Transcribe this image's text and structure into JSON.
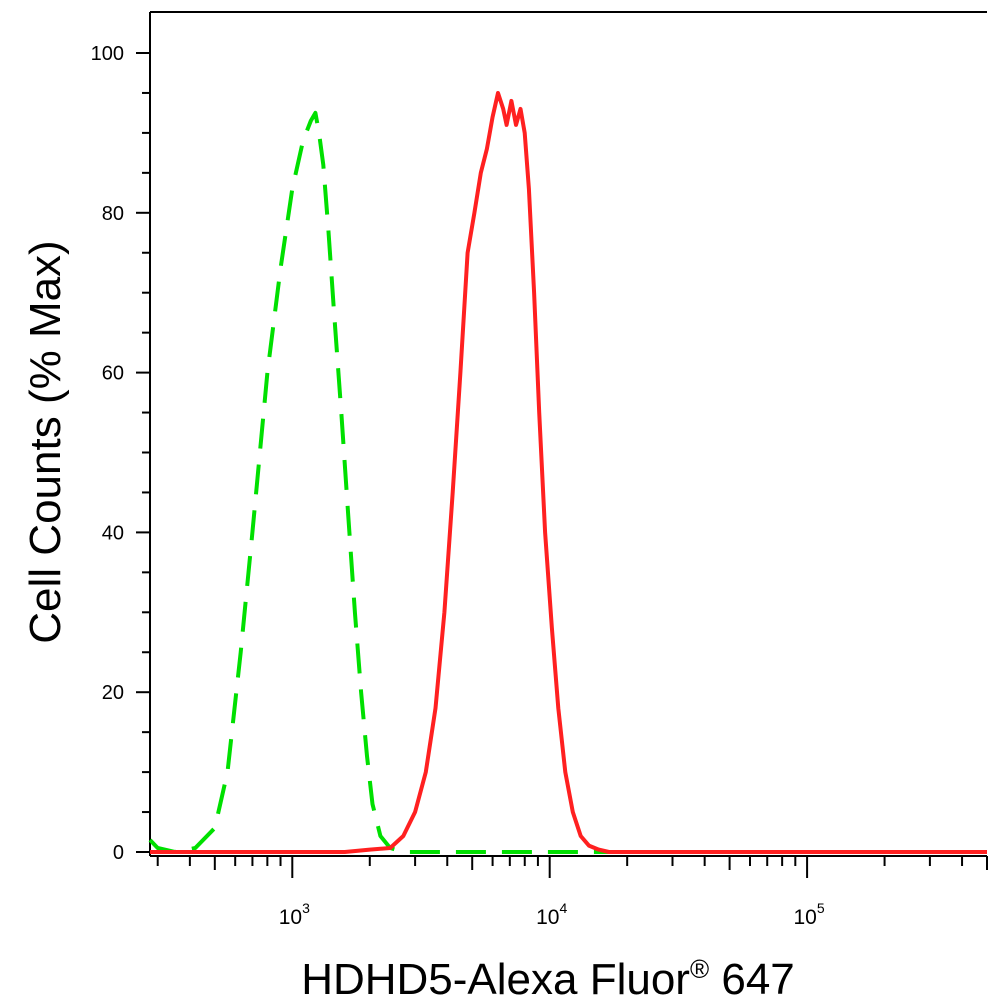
{
  "chart_data": {
    "type": "line",
    "xlabel_parts": {
      "main": "HDHD5-Alexa Fluor",
      "registered": "®",
      "suffix": " 647"
    },
    "ylabel": "Cell Counts (% Max)",
    "x_scale": "log",
    "xlim": [
      280,
      500000
    ],
    "ylim": [
      0,
      100
    ],
    "y_ticks": [
      0,
      20,
      40,
      60,
      80,
      100
    ],
    "y_tick_labels": [
      "0",
      "20",
      "40",
      "60",
      "80",
      "100"
    ],
    "x_major_ticks": [
      1000,
      10000,
      100000
    ],
    "x_tick_labels": [
      {
        "base": "10",
        "exp": "3"
      },
      {
        "base": "10",
        "exp": "4"
      },
      {
        "base": "10",
        "exp": "5"
      }
    ],
    "grid": false,
    "series": [
      {
        "color": "#00e000",
        "style": "dashed",
        "x": [
          280,
          300,
          350,
          420,
          500,
          560,
          630,
          700,
          800,
          900,
          1000,
          1100,
          1180,
          1230,
          1270,
          1320,
          1380,
          1450,
          1550,
          1650,
          1750,
          1850,
          1950,
          2050,
          2200,
          2400,
          2700,
          3000,
          4000,
          6000,
          10000,
          20000,
          50000,
          100000,
          200000,
          500000
        ],
        "y": [
          1.5,
          0.5,
          0,
          0.5,
          3,
          10,
          25,
          40,
          60,
          73,
          83,
          89,
          91.5,
          92.5,
          90,
          86,
          78,
          68,
          55,
          42,
          30,
          20,
          12,
          6,
          2,
          0.5,
          0,
          0,
          0,
          0,
          0,
          0,
          0,
          0,
          0,
          0
        ]
      },
      {
        "color": "#ff2020",
        "style": "solid",
        "x": [
          280,
          1000,
          1600,
          2000,
          2400,
          2700,
          3000,
          3300,
          3600,
          3900,
          4200,
          4500,
          4800,
          5100,
          5400,
          5700,
          6000,
          6300,
          6600,
          6800,
          7100,
          7400,
          7700,
          8000,
          8300,
          8700,
          9100,
          9600,
          10200,
          10800,
          11500,
          12300,
          13200,
          14200,
          15500,
          17000,
          19000,
          25000,
          100000,
          500000
        ],
        "y": [
          0,
          0,
          0,
          0.3,
          0.5,
          2,
          5,
          10,
          18,
          30,
          45,
          60,
          75,
          80,
          85,
          88,
          92,
          95,
          93,
          91,
          94,
          91,
          93,
          90,
          83,
          70,
          55,
          40,
          28,
          18,
          10,
          5,
          2,
          0.8,
          0.3,
          0,
          0,
          0,
          0,
          0
        ]
      }
    ]
  }
}
